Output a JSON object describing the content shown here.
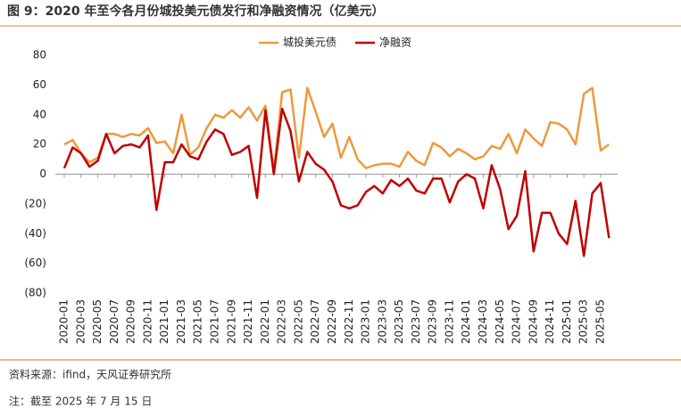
{
  "chart_data": {
    "type": "line",
    "title": "图 9：2020 年至今各月份城投美元债发行和净融资情况（亿美元）",
    "source": "资料来源：ifind，天风证券研究所",
    "note": "注：截至 2025 年 7 月 15 日",
    "categories": [
      "2020-01",
      null,
      "2020-03",
      null,
      "2020-05",
      null,
      "2020-07",
      null,
      "2020-09",
      null,
      "2020-11",
      null,
      "2021-01",
      null,
      "2021-03",
      null,
      "2021-05",
      null,
      "2021-07",
      null,
      "2021-09",
      null,
      "2021-11",
      null,
      "2022-01",
      null,
      "2022-03",
      null,
      "2022-05",
      null,
      "2022-07",
      null,
      "2022-09",
      null,
      "2022-11",
      null,
      "2023-01",
      null,
      "2023-03",
      null,
      "2023-05",
      null,
      "2023-07",
      null,
      "2023-09",
      null,
      "2023-11",
      null,
      "2024-01",
      null,
      "2024-03",
      null,
      "2024-05",
      null,
      "2024-07",
      null,
      "2024-09",
      null,
      "2024-11",
      null,
      "2025-01",
      null,
      "2025-03",
      null,
      "2025-05",
      null
    ],
    "series": [
      {
        "name": "城投美元债",
        "color": "#ed9a3c",
        "values": [
          20,
          23,
          14,
          8,
          11,
          27,
          27,
          25,
          27,
          26,
          31,
          21,
          22,
          14,
          40,
          13,
          18,
          31,
          40,
          38,
          43,
          38,
          45,
          36,
          46,
          2,
          55,
          57,
          11,
          58,
          42,
          25,
          34,
          11,
          25,
          10,
          4,
          6,
          7,
          7,
          5,
          15,
          9,
          6,
          21,
          18,
          12,
          17,
          14,
          10,
          12,
          19,
          17,
          27,
          14,
          30,
          24,
          19,
          35,
          34,
          30,
          20,
          54,
          58,
          16,
          20
        ]
      },
      {
        "name": "净融资",
        "color": "#c00000",
        "values": [
          4,
          18,
          14,
          5,
          9,
          27,
          14,
          19,
          20,
          18,
          26,
          -24,
          8,
          8,
          20,
          12,
          10,
          22,
          30,
          27,
          13,
          15,
          19,
          -16,
          43,
          0,
          44,
          29,
          -5,
          15,
          7,
          3,
          -5,
          -21,
          -23,
          -21,
          -12,
          -8,
          -13,
          -4,
          -8,
          -3,
          -11,
          -13,
          -3,
          -3,
          -19,
          -5,
          0,
          -3,
          -23,
          6,
          -10,
          -37,
          -28,
          2,
          -52,
          -26,
          -26,
          -40,
          -47,
          -18,
          -55,
          -13,
          -6,
          -43
        ]
      }
    ],
    "ylim": [
      -80,
      80
    ],
    "yticks": [
      80,
      60,
      40,
      20,
      0,
      {
        "value": -20,
        "label": "(20)"
      },
      {
        "value": -40,
        "label": "(40)"
      },
      {
        "value": -60,
        "label": "(60)"
      },
      {
        "value": -80,
        "label": "(80)"
      }
    ]
  }
}
